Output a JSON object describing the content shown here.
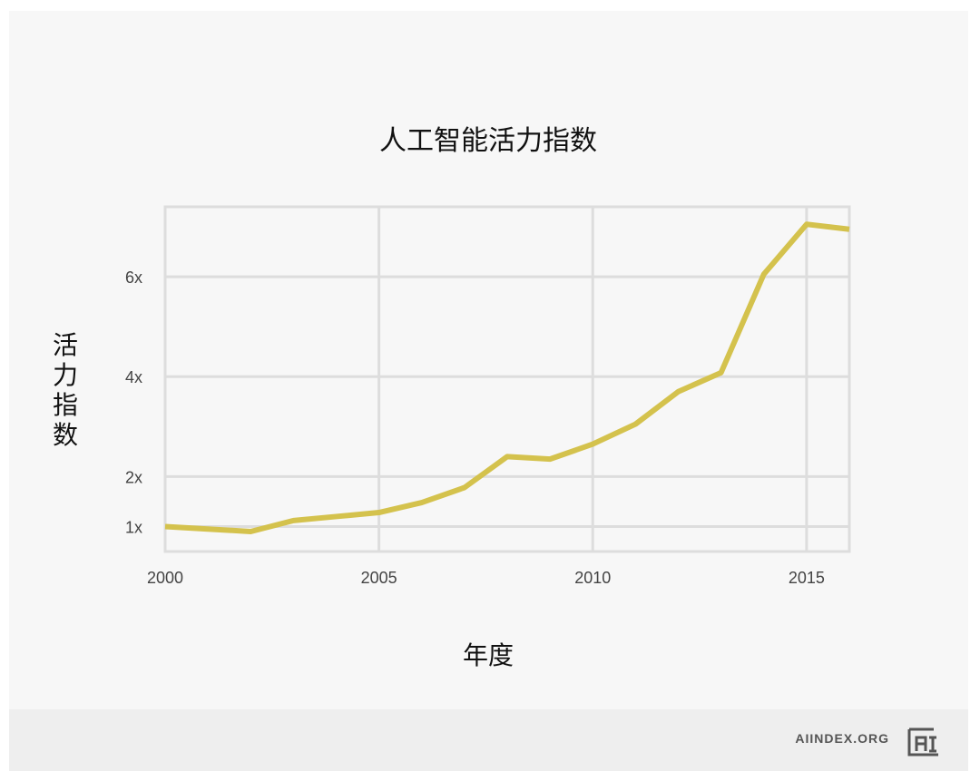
{
  "chart_data": {
    "type": "line",
    "title": "人工智能活力指数",
    "xlabel": "年度",
    "ylabel": "活力指数",
    "x": [
      2000,
      2001,
      2002,
      2003,
      2004,
      2005,
      2006,
      2007,
      2008,
      2009,
      2010,
      2011,
      2012,
      2013,
      2014,
      2015,
      2016
    ],
    "series": [
      {
        "values": [
          1.0,
          0.95,
          0.9,
          1.12,
          1.2,
          1.28,
          1.48,
          1.78,
          2.4,
          2.35,
          2.65,
          3.05,
          3.7,
          4.08,
          6.05,
          7.05,
          6.95
        ]
      }
    ],
    "xticks": [
      2000,
      2005,
      2010,
      2015
    ],
    "xtick_labels": [
      "2000",
      "2005",
      "2010",
      "2015"
    ],
    "yticks": [
      1,
      2,
      4,
      6
    ],
    "ytick_labels": [
      "1x",
      "2x",
      "4x",
      "6x"
    ],
    "xlim": [
      2000,
      2016
    ],
    "ylim": [
      0.5,
      7.4
    ],
    "grid": true,
    "line_color": "#d4c24d",
    "grid_color": "#dddddd"
  },
  "footer": {
    "brand": "AIINDEX.ORG",
    "logo_icon": "ai-index-logo-icon"
  }
}
